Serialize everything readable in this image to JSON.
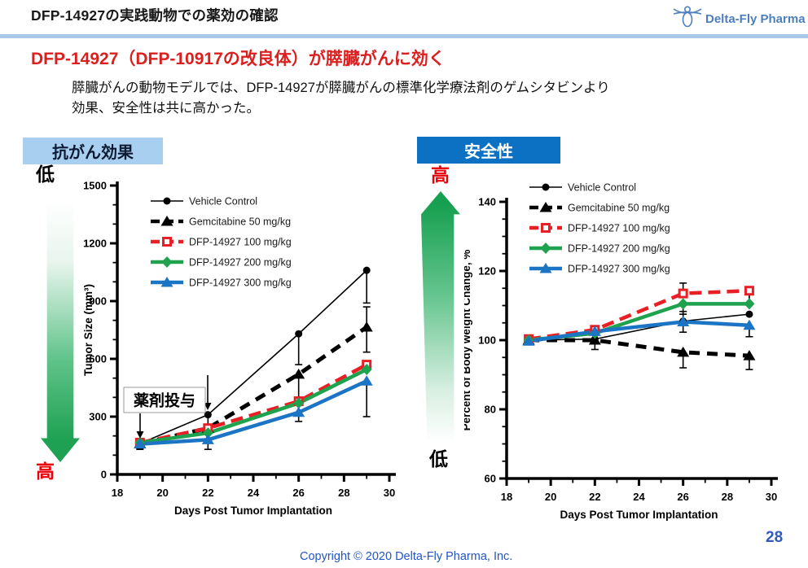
{
  "header": {
    "title": "DFP-14927の実践動物での薬効の確認",
    "logo_text": "Delta-Fly Pharma"
  },
  "headline": "DFP-14927（DFP-10917の改良体）が膵臓がんに効く",
  "body": {
    "lines": [
      "膵臓がんの動物モデルでは、DFP-14927が膵臓がんの標準化学療法剤のゲムシタビンより",
      "効果、安全性は共に高かった。"
    ]
  },
  "footer": {
    "copyright": "Copyright © 2020  Delta-Fly Pharma, Inc.",
    "page_number": "28"
  },
  "colors": {
    "divider_blue": "#a6cae8",
    "banner_light_blue": "#a9cff0",
    "banner_dark_blue": "#0c71c3",
    "headline_red": "#db1f1f",
    "scale_red": "#e8000b",
    "gradient_green": "#1ea152",
    "footer_blue": "#2355c8",
    "logo_blue": "#4d7fbe"
  },
  "chart_data": [
    {
      "type": "line",
      "banner": "抗がん効果",
      "scale": {
        "top_label": "低",
        "bottom_label": "高"
      },
      "xlabel": "Days Post Tumor Implantation",
      "ylabel": "Tumor Size (mm³)",
      "xlim": [
        18,
        30
      ],
      "ylim": [
        0,
        1500
      ],
      "xticks": [
        18,
        20,
        22,
        24,
        26,
        28,
        30
      ],
      "yticks": [
        0,
        300,
        600,
        900,
        1200,
        1500
      ],
      "xtick_minor": 1,
      "ytick_minor": 100,
      "grid": false,
      "legend_position": "upper-left-inside",
      "x": [
        19,
        22,
        26,
        29
      ],
      "series": [
        {
          "name": "Vehicle Control",
          "color": "#000000",
          "marker": "circle",
          "width": 1.6,
          "dash": "",
          "values": [
            160,
            310,
            730,
            1060
          ],
          "err_lo": [
            25,
            60,
            160,
            170
          ],
          "err_hi": [
            0,
            0,
            0,
            0
          ]
        },
        {
          "name": "Gemcitabine 50 mg/kg",
          "color": "#000000",
          "marker": "triangle",
          "width": 5,
          "dash": "13 9",
          "values": [
            160,
            240,
            520,
            765
          ],
          "err_lo": [
            0,
            0,
            150,
            130
          ],
          "err_hi": [
            0,
            0,
            0,
            105
          ]
        },
        {
          "name": "DFP-14927 100 mg/kg",
          "color": "#e82025",
          "marker": "square-open",
          "width": 4.5,
          "dash": "15 8",
          "values": [
            165,
            240,
            380,
            570
          ],
          "err_lo": [
            0,
            0,
            0,
            0
          ],
          "err_hi": [
            0,
            0,
            0,
            0
          ]
        },
        {
          "name": "DFP-14927 200 mg/kg",
          "color": "#1fa24e",
          "marker": "diamond",
          "width": 4.5,
          "dash": "",
          "values": [
            165,
            215,
            370,
            545
          ],
          "err_lo": [
            0,
            0,
            95,
            0
          ],
          "err_hi": [
            0,
            0,
            0,
            0
          ]
        },
        {
          "name": "DFP-14927 300 mg/kg",
          "color": "#1c74c4",
          "marker": "triangle",
          "width": 4.5,
          "dash": "",
          "values": [
            158,
            180,
            322,
            485
          ],
          "err_lo": [
            28,
            50,
            0,
            185
          ],
          "err_hi": [
            0,
            38,
            0,
            0
          ]
        }
      ],
      "annotation": {
        "label": "薬剤投与",
        "arrow_days": [
          19,
          22
        ]
      }
    },
    {
      "type": "line",
      "banner": "安全性",
      "scale": {
        "top_label": "高",
        "bottom_label": "低"
      },
      "xlabel": "Days Post Tumor Implantation",
      "ylabel": "Percent of  Body weight Change, %",
      "xlim": [
        18,
        30
      ],
      "ylim": [
        60,
        140
      ],
      "xticks": [
        18,
        20,
        22,
        24,
        26,
        28,
        30
      ],
      "yticks": [
        60,
        80,
        100,
        120,
        140
      ],
      "xtick_minor": 1,
      "ytick_minor": 5,
      "grid": false,
      "legend_position": "upper-left-inside",
      "x": [
        19,
        22,
        26,
        29
      ],
      "series": [
        {
          "name": "Vehicle Control",
          "color": "#000000",
          "marker": "circle",
          "width": 1.6,
          "dash": "",
          "values": [
            100,
            100.3,
            105.5,
            107.5
          ],
          "err_lo": [
            0,
            3,
            0,
            0
          ],
          "err_hi": [
            0,
            0,
            2.8,
            0
          ]
        },
        {
          "name": "Gemcitabine 50 mg/kg",
          "color": "#000000",
          "marker": "triangle",
          "width": 5,
          "dash": "13 9",
          "values": [
            100,
            100,
            96.5,
            95.5
          ],
          "err_lo": [
            0,
            0,
            4.5,
            4
          ],
          "err_hi": [
            0,
            0,
            0,
            0
          ]
        },
        {
          "name": "DFP-14927 100 mg/kg",
          "color": "#e82025",
          "marker": "square-open",
          "width": 4.5,
          "dash": "15 8",
          "values": [
            100.3,
            103,
            113.5,
            114.3
          ],
          "err_lo": [
            0,
            0,
            0,
            3.5
          ],
          "err_hi": [
            0,
            0,
            3,
            0
          ]
        },
        {
          "name": "DFP-14927 200 mg/kg",
          "color": "#1fa24e",
          "marker": "diamond",
          "width": 4.5,
          "dash": "",
          "values": [
            100,
            102,
            110.5,
            110.5
          ],
          "err_lo": [
            0,
            0,
            3,
            0
          ],
          "err_hi": [
            0,
            0,
            0,
            0
          ]
        },
        {
          "name": "DFP-14927 300 mg/kg",
          "color": "#1c74c4",
          "marker": "triangle",
          "width": 4.5,
          "dash": "",
          "values": [
            99.7,
            102.5,
            105.3,
            104.3
          ],
          "err_lo": [
            0,
            0,
            3,
            3.3
          ],
          "err_hi": [
            0,
            0,
            0,
            0
          ]
        }
      ]
    }
  ]
}
